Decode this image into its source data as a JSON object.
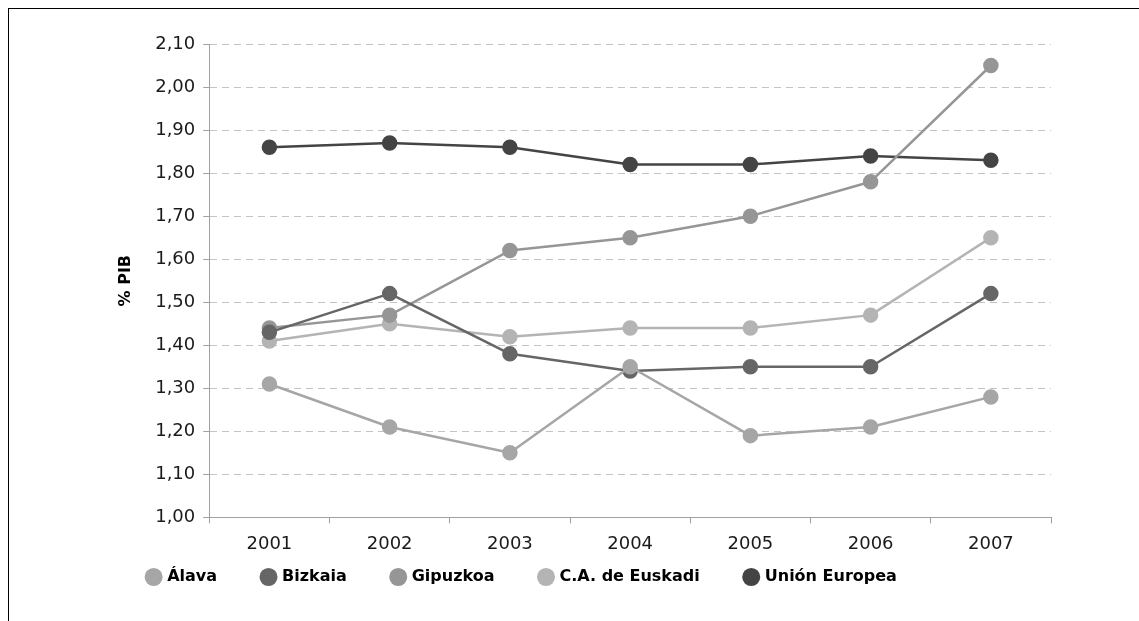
{
  "chart_data": {
    "type": "line",
    "ylabel": "% PIB",
    "categories": [
      "2001",
      "2002",
      "2003",
      "2004",
      "2005",
      "2006",
      "2007"
    ],
    "series": [
      {
        "name": "Álava",
        "color": "#a6a6a6",
        "values": [
          1.31,
          1.21,
          1.15,
          1.35,
          1.19,
          1.21,
          1.28
        ]
      },
      {
        "name": "Bizkaia",
        "color": "#666666",
        "values": [
          1.43,
          1.52,
          1.38,
          1.34,
          1.35,
          1.35,
          1.52
        ]
      },
      {
        "name": "Gipuzkoa",
        "color": "#969696",
        "values": [
          1.44,
          1.47,
          1.62,
          1.65,
          1.7,
          1.78,
          2.05
        ]
      },
      {
        "name": "C.A. de Euskadi",
        "color": "#b4b4b4",
        "values": [
          1.41,
          1.45,
          1.42,
          1.44,
          1.44,
          1.47,
          1.65
        ]
      },
      {
        "name": "Unión Europea",
        "color": "#444444",
        "values": [
          1.86,
          1.87,
          1.86,
          1.82,
          1.82,
          1.84,
          1.83
        ]
      }
    ],
    "ylim": [
      1.0,
      2.1
    ],
    "yticks": [
      {
        "value": 1.0,
        "label": "1,00"
      },
      {
        "value": 1.1,
        "label": "1,10"
      },
      {
        "value": 1.2,
        "label": "1,20"
      },
      {
        "value": 1.3,
        "label": "1,30"
      },
      {
        "value": 1.4,
        "label": "1,40"
      },
      {
        "value": 1.5,
        "label": "1,50"
      },
      {
        "value": 1.6,
        "label": "1,60"
      },
      {
        "value": 1.7,
        "label": "1,70"
      },
      {
        "value": 1.8,
        "label": "1,80"
      },
      {
        "value": 1.9,
        "label": "1,90"
      },
      {
        "value": 2.0,
        "label": "2,00"
      },
      {
        "value": 2.1,
        "label": "2,10"
      }
    ],
    "grid": "y",
    "legend": "bottom",
    "marker": "circle",
    "line_style": "solid"
  }
}
